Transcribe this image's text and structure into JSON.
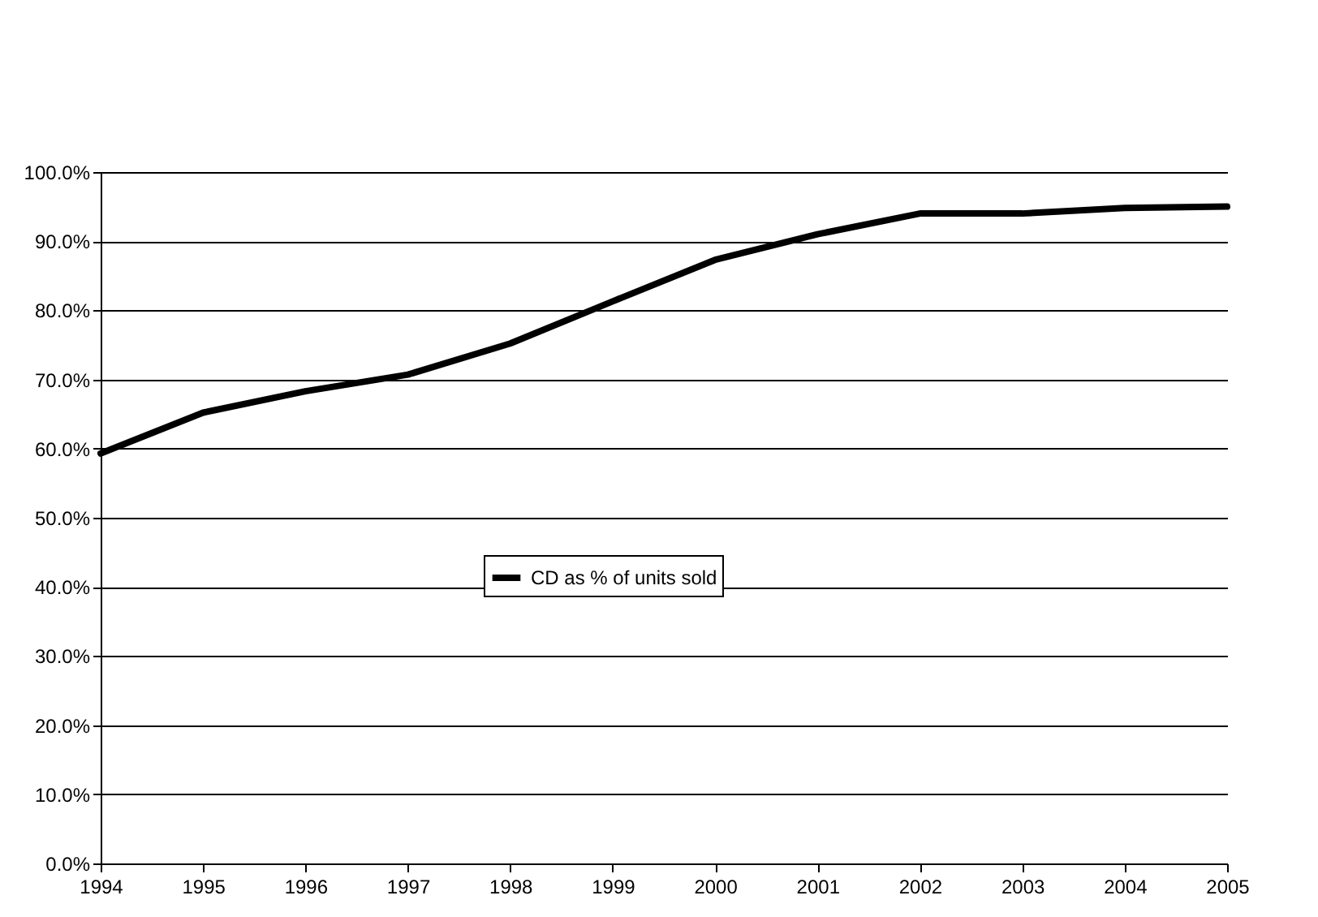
{
  "chart_data": {
    "type": "line",
    "categories": [
      "1994",
      "1995",
      "1996",
      "1997",
      "1998",
      "1999",
      "2000",
      "2001",
      "2002",
      "2003",
      "2004",
      "2005"
    ],
    "series": [
      {
        "name": "CD as % of units sold",
        "color": "#000000",
        "values": [
          59.3,
          65.2,
          68.3,
          70.7,
          75.2,
          81.3,
          87.3,
          91.0,
          94.0,
          94.0,
          94.8,
          95.0
        ]
      }
    ],
    "ylim": [
      0,
      100
    ],
    "yticks": [
      {
        "value": 0,
        "label": "0.0%"
      },
      {
        "value": 10,
        "label": "10.0%"
      },
      {
        "value": 20,
        "label": "20.0%"
      },
      {
        "value": 30,
        "label": "30.0%"
      },
      {
        "value": 40,
        "label": "40.0%"
      },
      {
        "value": 50,
        "label": "50.0%"
      },
      {
        "value": 60,
        "label": "60.0%"
      },
      {
        "value": 70,
        "label": "70.0%"
      },
      {
        "value": 80,
        "label": "80.0%"
      },
      {
        "value": 90,
        "label": "90.0%"
      },
      {
        "value": 100,
        "label": "100.0%"
      }
    ],
    "grid": "y",
    "legend": "center",
    "marker": "none",
    "line_style": "solid"
  }
}
